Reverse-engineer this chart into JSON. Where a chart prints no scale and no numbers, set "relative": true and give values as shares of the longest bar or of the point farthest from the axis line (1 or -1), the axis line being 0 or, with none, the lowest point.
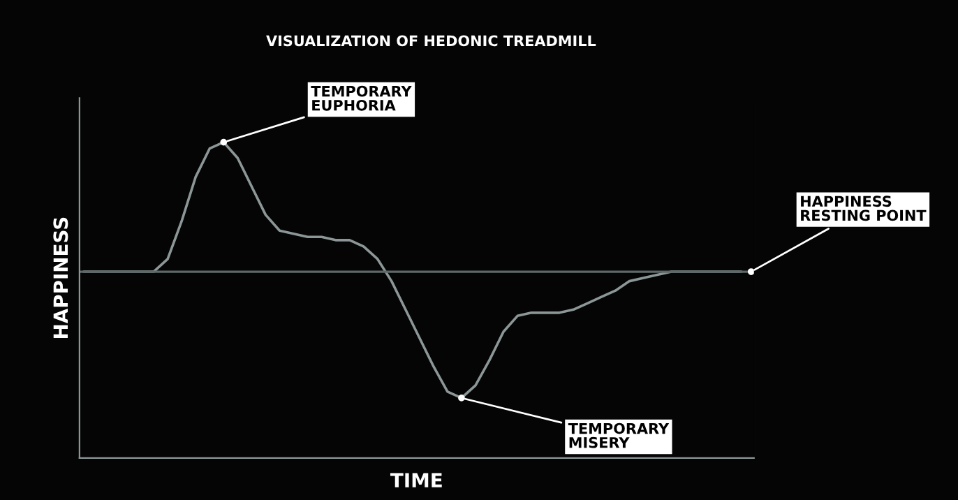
{
  "chart_data": {
    "type": "line",
    "title": "VISUALIZATION OF HEDONIC TREADMILL",
    "xlabel": "TIME",
    "ylabel": "HAPPINESS",
    "relative": true,
    "categories": [
      null,
      null,
      null,
      null,
      null,
      null,
      null,
      null,
      null,
      null,
      null,
      null,
      null,
      null,
      null,
      null,
      null,
      null,
      null,
      null,
      null,
      null,
      null,
      null,
      null,
      null,
      null,
      null,
      null,
      null,
      null,
      null,
      null,
      null,
      null,
      null,
      null,
      null,
      null,
      null,
      null,
      null,
      null,
      null,
      null,
      null,
      null,
      null
    ],
    "series": [
      {
        "color": "#8c9696",
        "values": [
          0.59,
          0.59,
          0.59,
          0.59,
          0.59,
          0.59,
          0.63,
          0.75,
          0.89,
          0.98,
          1.0,
          0.95,
          0.86,
          0.77,
          0.72,
          0.71,
          0.7,
          0.7,
          0.69,
          0.69,
          0.67,
          0.63,
          0.56,
          0.47,
          0.38,
          0.29,
          0.21,
          0.19,
          0.23,
          0.31,
          0.4,
          0.45,
          0.46,
          0.46,
          0.46,
          0.47,
          0.49,
          0.51,
          0.53,
          0.56,
          0.57,
          0.58,
          0.59,
          0.59,
          0.59,
          0.59,
          0.59,
          0.59
        ]
      }
    ],
    "ref_lines": [
      {
        "axis": "y",
        "value": 0.59,
        "label": "HAPPINESS\nRESTING POINT",
        "color": "#5f6868"
      }
    ],
    "annotations": [
      "TEMPORARY\nEUPHORIA",
      "TEMPORARY\nMISERY"
    ],
    "grid": false,
    "legend": false
  }
}
